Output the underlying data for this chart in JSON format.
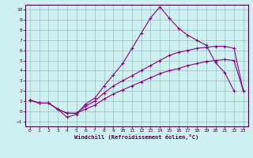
{
  "xlabel": "Windchill (Refroidissement éolien,°C)",
  "bg_color": "#cff0f0",
  "grid_color": "#99bbbb",
  "line_color": "#880088",
  "xlim": [
    -0.5,
    23.5
  ],
  "ylim": [
    -1.5,
    10.5
  ],
  "xticks": [
    0,
    1,
    2,
    3,
    4,
    5,
    6,
    7,
    8,
    9,
    10,
    11,
    12,
    13,
    14,
    15,
    16,
    17,
    18,
    19,
    20,
    21,
    22,
    23
  ],
  "yticks": [
    -1,
    0,
    1,
    2,
    3,
    4,
    5,
    6,
    7,
    8,
    9,
    10
  ],
  "line1_x": [
    0,
    1,
    2,
    3,
    4,
    5,
    6,
    7,
    8,
    9,
    10,
    11,
    12,
    13,
    14,
    15,
    16,
    17,
    18,
    19,
    20,
    21,
    22
  ],
  "line1_y": [
    1.1,
    0.8,
    0.8,
    0.2,
    -0.6,
    -0.3,
    0.7,
    1.3,
    2.5,
    3.6,
    4.7,
    6.2,
    7.7,
    9.2,
    10.3,
    9.2,
    8.2,
    7.5,
    7.0,
    6.5,
    4.8,
    3.8,
    2.0
  ],
  "line2_x": [
    0,
    1,
    2,
    3,
    4,
    5,
    6,
    7,
    8,
    9,
    10,
    11,
    12,
    13,
    14,
    15,
    16,
    17,
    18,
    19,
    20,
    21,
    22,
    23
  ],
  "line2_y": [
    1.1,
    0.8,
    0.8,
    0.2,
    -0.2,
    -0.2,
    0.5,
    1.0,
    1.8,
    2.5,
    3.0,
    3.5,
    4.0,
    4.5,
    5.0,
    5.5,
    5.8,
    6.0,
    6.2,
    6.3,
    6.4,
    6.4,
    6.2,
    2.0
  ],
  "line3_x": [
    0,
    1,
    2,
    3,
    4,
    5,
    6,
    7,
    8,
    9,
    10,
    11,
    12,
    13,
    14,
    15,
    16,
    17,
    18,
    19,
    20,
    21,
    22,
    23
  ],
  "line3_y": [
    1.1,
    0.8,
    0.8,
    0.2,
    -0.2,
    -0.2,
    0.2,
    0.6,
    1.2,
    1.7,
    2.1,
    2.5,
    2.9,
    3.3,
    3.7,
    4.0,
    4.2,
    4.5,
    4.7,
    4.9,
    5.0,
    5.1,
    5.0,
    2.0
  ]
}
